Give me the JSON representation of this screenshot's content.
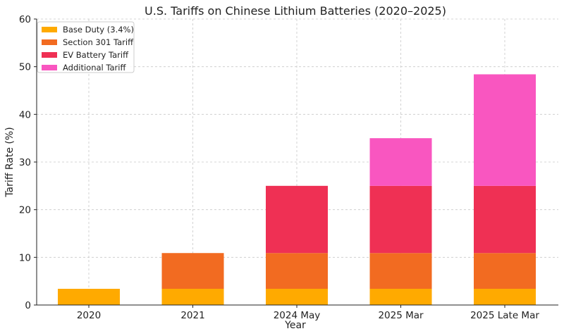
{
  "chart_data": {
    "type": "bar",
    "stacked": true,
    "title": "U.S. Tariffs on Chinese Lithium Batteries (2020–2025)",
    "xlabel": "Year",
    "ylabel": "Tariff Rate (%)",
    "ylim": [
      0,
      60
    ],
    "yticks": [
      0,
      10,
      20,
      30,
      40,
      50,
      60
    ],
    "grid": true,
    "legend_position": "top-left",
    "categories": [
      "2020",
      "2021",
      "2024 May",
      "2025 Mar",
      "2025 Late Mar"
    ],
    "series": [
      {
        "name": "Base Duty (3.4%)",
        "color": "#FFAA00",
        "values": [
          3.4,
          3.4,
          3.4,
          3.4,
          3.4
        ]
      },
      {
        "name": "Section 301 Tariff",
        "color": "#F26B21",
        "values": [
          0,
          7.5,
          7.5,
          7.5,
          7.5
        ]
      },
      {
        "name": "EV Battery Tariff",
        "color": "#EF3054",
        "values": [
          0,
          0,
          14.1,
          14.1,
          14.1
        ]
      },
      {
        "name": "Additional Tariff",
        "color": "#F956C0",
        "values": [
          0,
          0,
          0,
          10,
          23.4
        ]
      }
    ]
  }
}
